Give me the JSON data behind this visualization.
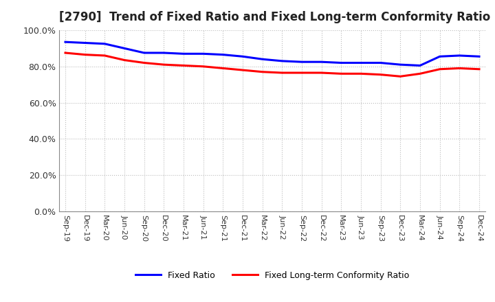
{
  "title": "[2790]  Trend of Fixed Ratio and Fixed Long-term Conformity Ratio",
  "x_labels": [
    "Sep-19",
    "Dec-19",
    "Mar-20",
    "Jun-20",
    "Sep-20",
    "Dec-20",
    "Mar-21",
    "Jun-21",
    "Sep-21",
    "Dec-21",
    "Mar-22",
    "Jun-22",
    "Sep-22",
    "Dec-22",
    "Mar-23",
    "Jun-23",
    "Sep-23",
    "Dec-23",
    "Mar-24",
    "Jun-24",
    "Sep-24",
    "Dec-24"
  ],
  "fixed_ratio": [
    93.5,
    93.0,
    92.5,
    90.0,
    87.5,
    87.5,
    87.0,
    87.0,
    86.5,
    85.5,
    84.0,
    83.0,
    82.5,
    82.5,
    82.0,
    82.0,
    82.0,
    81.0,
    80.5,
    85.5,
    86.0,
    85.5
  ],
  "fixed_lt_ratio": [
    87.5,
    86.5,
    86.0,
    83.5,
    82.0,
    81.0,
    80.5,
    80.0,
    79.0,
    78.0,
    77.0,
    76.5,
    76.5,
    76.5,
    76.0,
    76.0,
    75.5,
    74.5,
    76.0,
    78.5,
    79.0,
    78.5
  ],
  "line_color_fixed": "#0000FF",
  "line_color_lt": "#FF0000",
  "ylim": [
    0,
    100
  ],
  "yticks": [
    0,
    20,
    40,
    60,
    80,
    100
  ],
  "legend_fixed": "Fixed Ratio",
  "legend_lt": "Fixed Long-term Conformity Ratio",
  "bg_color": "#FFFFFF",
  "grid_color": "#BBBBBB",
  "line_width": 2.2,
  "title_fontsize": 12,
  "tick_fontsize": 8,
  "legend_fontsize": 9
}
